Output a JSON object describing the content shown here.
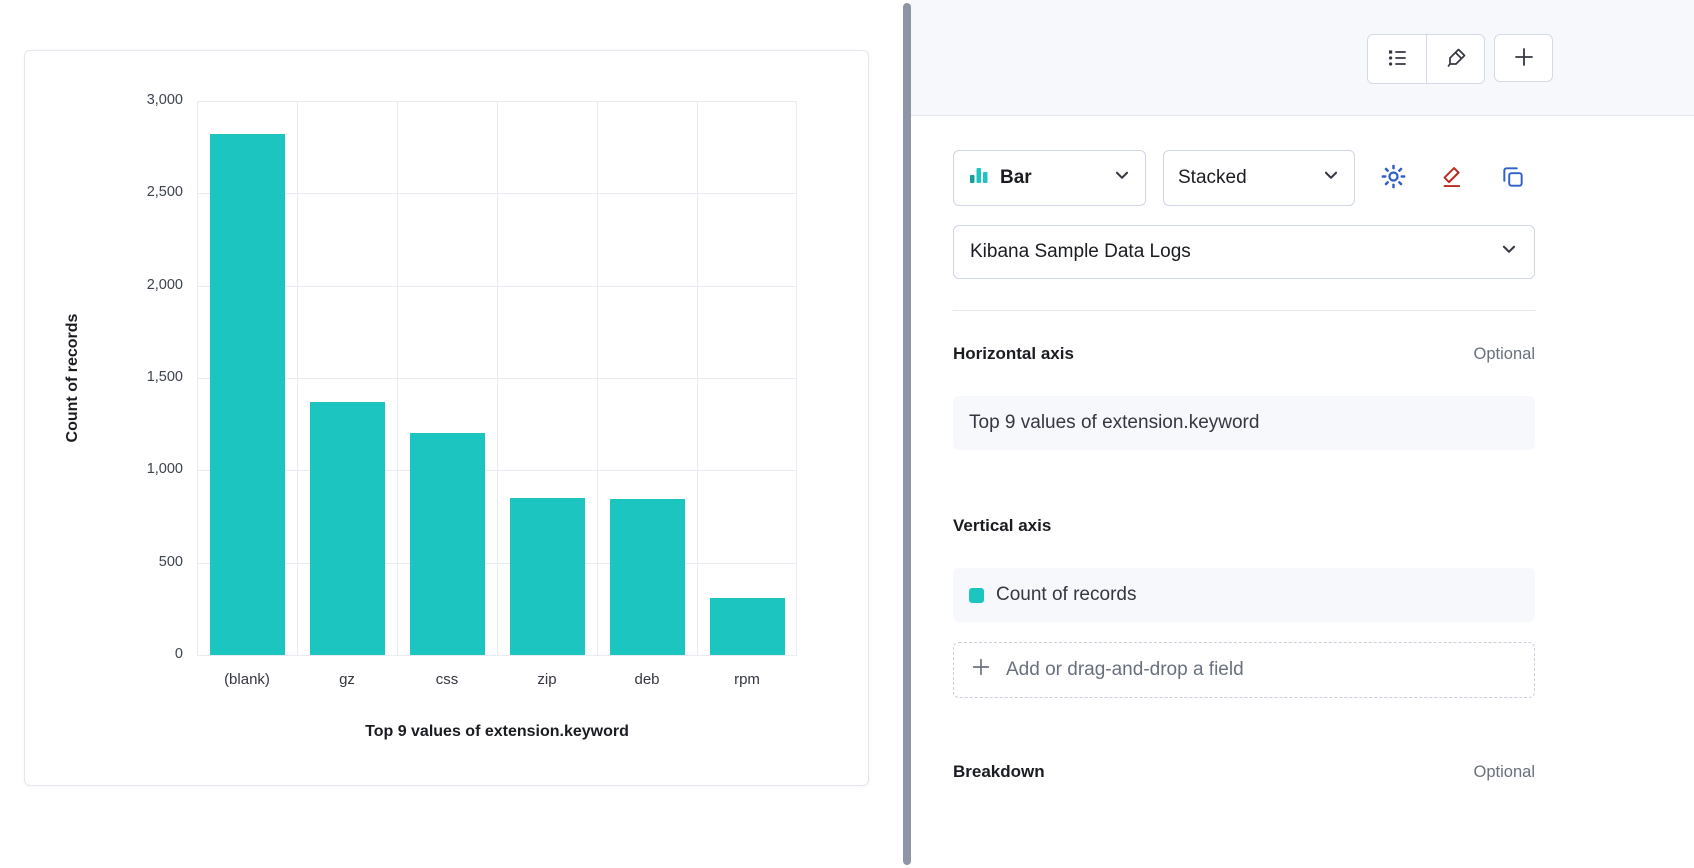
{
  "colors": {
    "accent_teal": "#1dc5c0",
    "accent_teal_dark": "#149f9b",
    "link_blue": "#2f5fc7",
    "danger_red": "#bd271e"
  },
  "chart_data": {
    "type": "bar",
    "categories": [
      "(blank)",
      "gz",
      "css",
      "zip",
      "deb",
      "rpm"
    ],
    "values": [
      2820,
      1370,
      1200,
      850,
      845,
      310
    ],
    "title": "",
    "xlabel": "Top 9 values of extension.keyword",
    "ylabel": "Count of records",
    "ylim": [
      0,
      3000
    ],
    "ytick_step": 500,
    "bar_color": "#1dc5c0"
  },
  "panel": {
    "chart_type": {
      "label": "Bar"
    },
    "display_mode": {
      "label": "Stacked"
    },
    "data_view": {
      "label": "Kibana Sample Data Logs"
    },
    "horizontal_axis": {
      "label": "Horizontal axis",
      "optional": "Optional",
      "field": "Top 9 values of extension.keyword"
    },
    "vertical_axis": {
      "label": "Vertical axis",
      "field": "Count of records"
    },
    "add_field": {
      "label": "Add or drag-and-drop a field"
    },
    "breakdown": {
      "label": "Breakdown",
      "optional": "Optional"
    }
  }
}
